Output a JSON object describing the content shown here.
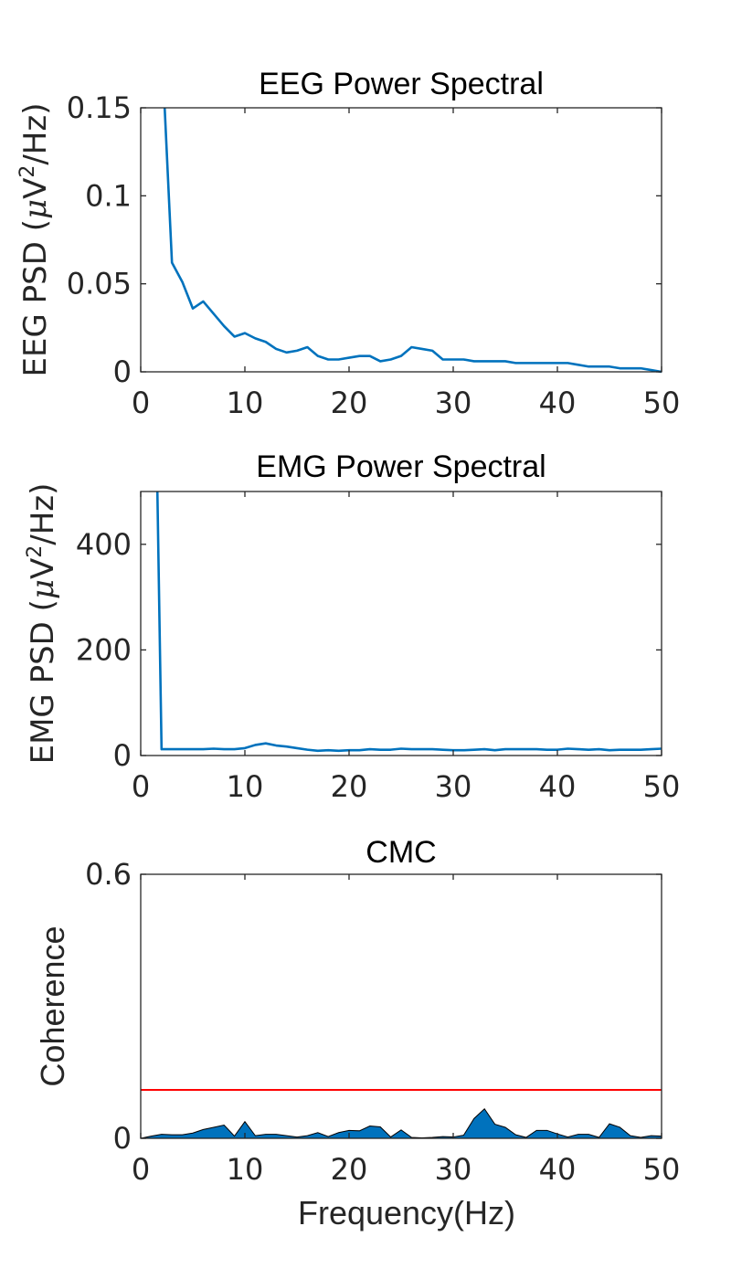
{
  "chart_data": [
    {
      "type": "line",
      "title": "EEG Power Spectral",
      "ylabel": {
        "prefix": "EEG PSD (",
        "mu": "μ",
        "unit": "V",
        "sup": "2",
        "suffix": "/Hz)"
      },
      "xlim": [
        0,
        50
      ],
      "ylim": [
        0,
        0.15
      ],
      "xticks": [
        0,
        10,
        20,
        30,
        40,
        50
      ],
      "yticks": [
        0,
        0.05,
        0.1,
        0.15
      ],
      "ytick_labels": [
        "0",
        "0.05",
        "0.1",
        "0.15"
      ],
      "grid": false,
      "color": "#0072BD",
      "series": [
        {
          "x": [
            2.3,
            3,
            4,
            5,
            6,
            7,
            8,
            9,
            10,
            11,
            12,
            13,
            14,
            15,
            16,
            17,
            18,
            19,
            20,
            21,
            22,
            23,
            24,
            25,
            26,
            27,
            28,
            29,
            30,
            31,
            32,
            33,
            34,
            35,
            36,
            37,
            38,
            39,
            40,
            41,
            42,
            43,
            44,
            45,
            46,
            47,
            48,
            49,
            50
          ],
          "values": [
            0.15,
            0.062,
            0.051,
            0.036,
            0.04,
            0.033,
            0.026,
            0.02,
            0.022,
            0.019,
            0.017,
            0.013,
            0.011,
            0.012,
            0.014,
            0.009,
            0.007,
            0.007,
            0.008,
            0.009,
            0.009,
            0.006,
            0.007,
            0.009,
            0.014,
            0.013,
            0.012,
            0.007,
            0.007,
            0.007,
            0.006,
            0.006,
            0.006,
            0.006,
            0.005,
            0.005,
            0.005,
            0.005,
            0.005,
            0.005,
            0.004,
            0.003,
            0.003,
            0.003,
            0.002,
            0.002,
            0.002,
            0.001,
            0.0
          ]
        }
      ]
    },
    {
      "type": "line",
      "title": "EMG Power Spectral",
      "ylabel": {
        "prefix": "EMG PSD (",
        "mu": "μ",
        "unit": "V",
        "sup": "2",
        "suffix": "/Hz)"
      },
      "xlim": [
        0,
        50
      ],
      "ylim": [
        0,
        500
      ],
      "xticks": [
        0,
        10,
        20,
        30,
        40,
        50
      ],
      "yticks": [
        0,
        200,
        400
      ],
      "ytick_labels": [
        "0",
        "200",
        "400"
      ],
      "grid": false,
      "color": "#0072BD",
      "series": [
        {
          "x": [
            1.6,
            2,
            3,
            4,
            5,
            6,
            7,
            8,
            9,
            10,
            11,
            12,
            13,
            14,
            15,
            16,
            17,
            18,
            19,
            20,
            21,
            22,
            23,
            24,
            25,
            26,
            27,
            28,
            29,
            30,
            31,
            32,
            33,
            34,
            35,
            36,
            37,
            38,
            39,
            40,
            41,
            42,
            43,
            44,
            45,
            46,
            47,
            48,
            49,
            50
          ],
          "values": [
            500,
            12,
            12,
            12,
            12,
            12,
            13,
            12,
            12,
            14,
            20,
            23,
            19,
            17,
            14,
            11,
            9,
            10,
            9,
            10,
            10,
            12,
            11,
            11,
            13,
            12,
            12,
            12,
            11,
            10,
            10,
            11,
            12,
            10,
            12,
            12,
            12,
            12,
            11,
            11,
            13,
            12,
            11,
            12,
            10,
            11,
            11,
            11,
            12,
            13
          ]
        }
      ]
    },
    {
      "type": "area",
      "title": "CMC",
      "ylabel": "Coherence",
      "xlabel": "Frequency(Hz)",
      "xlim": [
        0,
        50
      ],
      "ylim": [
        0,
        0.6
      ],
      "xticks": [
        0,
        10,
        20,
        30,
        40,
        50
      ],
      "yticks": [
        0,
        0.6
      ],
      "ytick_labels": [
        "0",
        "0.6"
      ],
      "grid": false,
      "color": "#0072BD",
      "threshold": {
        "value": 0.11,
        "color": "#FF0000"
      },
      "series": [
        {
          "x": [
            0,
            1,
            2,
            3,
            4,
            5,
            6,
            7,
            8,
            9,
            10,
            11,
            12,
            13,
            14,
            15,
            16,
            17,
            18,
            19,
            20,
            21,
            22,
            23,
            24,
            25,
            26,
            27,
            28,
            29,
            30,
            31,
            32,
            33,
            34,
            35,
            36,
            37,
            38,
            39,
            40,
            41,
            42,
            43,
            44,
            45,
            46,
            47,
            48,
            49,
            50
          ],
          "values": [
            0.0,
            0.005,
            0.009,
            0.008,
            0.008,
            0.012,
            0.02,
            0.025,
            0.03,
            0.005,
            0.038,
            0.006,
            0.009,
            0.009,
            0.006,
            0.003,
            0.006,
            0.013,
            0.004,
            0.013,
            0.018,
            0.017,
            0.028,
            0.026,
            0.003,
            0.019,
            0.002,
            0.001,
            0.002,
            0.004,
            0.003,
            0.007,
            0.045,
            0.067,
            0.032,
            0.025,
            0.008,
            0.002,
            0.018,
            0.018,
            0.01,
            0.003,
            0.009,
            0.009,
            0.002,
            0.033,
            0.025,
            0.006,
            0.002,
            0.006,
            0.005
          ]
        }
      ]
    }
  ]
}
